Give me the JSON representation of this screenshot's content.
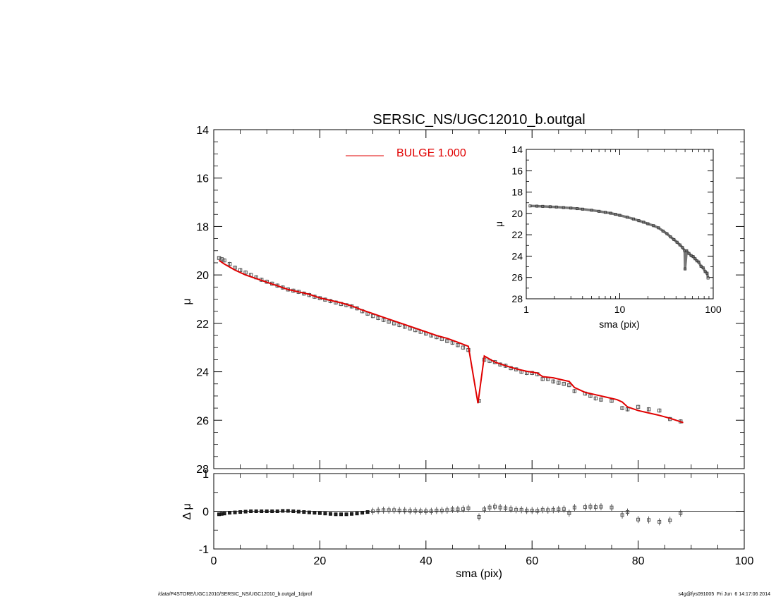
{
  "title": "SERSIC_NS/UGC12010_b.outgal",
  "footer_left": "/data/P4STORE/UGC12010/SERSIC_NS/UGC12010_b.outgal_1dprof",
  "footer_right": "s4g@fys091005  Fri Jun  6 14:17:06 2014",
  "colors": {
    "model": "#e00000",
    "data": "#555555",
    "axes": "#000000"
  },
  "chart_data": [
    {
      "panel": "main",
      "type": "scatter",
      "title": "SERSIC_NS/UGC12010_b.outgal",
      "ylabel": "μ",
      "xlim": [
        0,
        100
      ],
      "ylim": [
        28,
        14
      ],
      "yticks": [
        "14",
        "16",
        "18",
        "20",
        "22",
        "24",
        "26",
        "28"
      ],
      "legend": {
        "label": "BULGE  1.000",
        "color": "#e00000",
        "placement": "top-center"
      },
      "data_x": [
        1,
        1.5,
        2,
        3,
        4,
        5,
        6,
        7,
        8,
        9,
        10,
        11,
        12,
        13,
        14,
        15,
        16,
        17,
        18,
        19,
        20,
        21,
        22,
        23,
        24,
        25,
        26,
        27,
        28,
        29,
        30,
        31,
        32,
        33,
        34,
        35,
        36,
        37,
        38,
        39,
        40,
        41,
        42,
        43,
        44,
        45,
        46,
        47,
        48,
        50,
        51,
        52,
        53,
        54,
        55,
        56,
        57,
        58,
        59,
        60,
        61,
        62,
        63,
        64,
        65,
        66,
        67,
        68,
        70,
        71,
        72,
        73,
        75,
        77,
        78,
        80,
        82,
        84,
        86,
        88
      ],
      "data_y": [
        19.3,
        19.35,
        19.4,
        19.55,
        19.7,
        19.8,
        19.9,
        20.0,
        20.1,
        20.2,
        20.28,
        20.36,
        20.44,
        20.52,
        20.6,
        20.65,
        20.7,
        20.77,
        20.83,
        20.9,
        20.96,
        21.02,
        21.08,
        21.14,
        21.2,
        21.25,
        21.3,
        21.38,
        21.5,
        21.6,
        21.7,
        21.78,
        21.86,
        21.93,
        22.0,
        22.07,
        22.14,
        22.21,
        22.28,
        22.35,
        22.42,
        22.5,
        22.57,
        22.65,
        22.73,
        22.8,
        22.9,
        23.0,
        23.1,
        25.2,
        23.5,
        23.55,
        23.6,
        23.7,
        23.75,
        23.85,
        23.9,
        24.0,
        24.05,
        24.05,
        24.1,
        24.3,
        24.3,
        24.4,
        24.45,
        24.5,
        24.55,
        24.8,
        24.9,
        25.0,
        25.1,
        25.15,
        25.2,
        25.5,
        25.55,
        25.45,
        25.55,
        25.6,
        25.95,
        26.05
      ],
      "model_x": [
        1,
        2,
        4,
        6,
        8,
        10,
        12,
        14,
        16,
        18,
        20,
        22,
        24,
        26,
        28,
        30,
        32,
        34,
        36,
        38,
        40,
        42,
        44,
        46,
        48,
        49.8,
        51,
        53,
        55,
        57,
        59,
        61,
        62,
        64,
        66,
        67,
        68,
        70,
        72,
        74,
        76,
        77,
        78,
        80,
        82,
        84,
        86,
        88.5
      ],
      "model_y": [
        19.4,
        19.55,
        19.8,
        20.0,
        20.15,
        20.3,
        20.45,
        20.6,
        20.7,
        20.8,
        20.95,
        21.05,
        21.15,
        21.28,
        21.45,
        21.6,
        21.75,
        21.9,
        22.05,
        22.2,
        22.35,
        22.5,
        22.62,
        22.78,
        22.95,
        25.3,
        23.35,
        23.6,
        23.75,
        23.88,
        23.98,
        24.05,
        24.2,
        24.25,
        24.35,
        24.4,
        24.65,
        24.85,
        24.95,
        25.05,
        25.15,
        25.25,
        25.45,
        25.6,
        25.7,
        25.8,
        25.92,
        26.1
      ]
    },
    {
      "panel": "residual",
      "type": "scatter",
      "xlabel": "sma (pix)",
      "ylabel": "Δ μ",
      "xlim": [
        0,
        100
      ],
      "ylim": [
        -1,
        1
      ],
      "xticks": [
        "0",
        "20",
        "40",
        "60",
        "80",
        "100"
      ],
      "yticks": [
        "1",
        "0",
        "-1"
      ],
      "x": [
        1,
        1.5,
        2,
        3,
        4,
        5,
        6,
        7,
        8,
        9,
        10,
        11,
        12,
        13,
        14,
        15,
        16,
        17,
        18,
        19,
        20,
        21,
        22,
        23,
        24,
        25,
        26,
        27,
        28,
        29,
        30,
        31,
        32,
        33,
        34,
        35,
        36,
        37,
        38,
        39,
        40,
        41,
        42,
        43,
        44,
        45,
        46,
        47,
        48,
        50,
        51,
        52,
        53,
        54,
        55,
        56,
        57,
        58,
        59,
        60,
        61,
        62,
        63,
        64,
        65,
        66,
        67,
        68,
        70,
        71,
        72,
        73,
        75,
        77,
        78,
        80,
        82,
        84,
        86,
        88
      ],
      "y": [
        -0.08,
        -0.07,
        -0.06,
        -0.04,
        -0.03,
        -0.02,
        -0.01,
        0.0,
        0.0,
        0.0,
        0.0,
        0.0,
        0.0,
        0.01,
        0.01,
        0.0,
        -0.01,
        -0.02,
        -0.03,
        -0.04,
        -0.05,
        -0.06,
        -0.07,
        -0.08,
        -0.08,
        -0.08,
        -0.07,
        -0.06,
        -0.04,
        -0.02,
        0.0,
        0.02,
        0.03,
        0.03,
        0.03,
        0.02,
        0.02,
        0.01,
        0.01,
        0.0,
        0.0,
        0.0,
        0.02,
        0.02,
        0.03,
        0.05,
        0.05,
        0.06,
        0.08,
        -0.15,
        0.05,
        0.1,
        0.12,
        0.1,
        0.08,
        0.06,
        0.04,
        0.04,
        0.02,
        0.02,
        0.01,
        0.04,
        0.03,
        0.04,
        0.05,
        0.06,
        -0.05,
        0.1,
        0.11,
        0.12,
        0.11,
        0.12,
        0.1,
        -0.1,
        -0.02,
        -0.22,
        -0.23,
        -0.28,
        -0.24,
        -0.05
      ]
    },
    {
      "panel": "inset",
      "type": "scatter",
      "xscale": "log",
      "xlabel": "sma (pix)",
      "ylabel": "μ",
      "xlim": [
        1,
        100
      ],
      "ylim": [
        28,
        14
      ],
      "xticks": [
        "1",
        "10",
        "100"
      ],
      "yticks": [
        "14",
        "16",
        "18",
        "20",
        "22",
        "24",
        "26",
        "28"
      ],
      "x": [
        1.1,
        1.3,
        1.5,
        1.8,
        2.1,
        2.5,
        3,
        3.5,
        4,
        5,
        6,
        7,
        8,
        9,
        10,
        12,
        14,
        16,
        18,
        20,
        23,
        26,
        29,
        32,
        35,
        38,
        41,
        44,
        47,
        49.5,
        50,
        52,
        55,
        58,
        61,
        64,
        67,
        70,
        74,
        78,
        82,
        86,
        88
      ],
      "y": [
        19.3,
        19.32,
        19.34,
        19.37,
        19.4,
        19.45,
        19.5,
        19.55,
        19.6,
        19.7,
        19.8,
        19.9,
        19.98,
        20.08,
        20.18,
        20.35,
        20.52,
        20.68,
        20.82,
        20.97,
        21.15,
        21.35,
        21.65,
        21.9,
        22.2,
        22.45,
        22.7,
        22.95,
        23.2,
        23.5,
        25.2,
        23.5,
        23.75,
        23.95,
        24.05,
        24.25,
        24.45,
        24.55,
        24.95,
        25.1,
        25.45,
        25.6,
        26.05
      ]
    }
  ]
}
